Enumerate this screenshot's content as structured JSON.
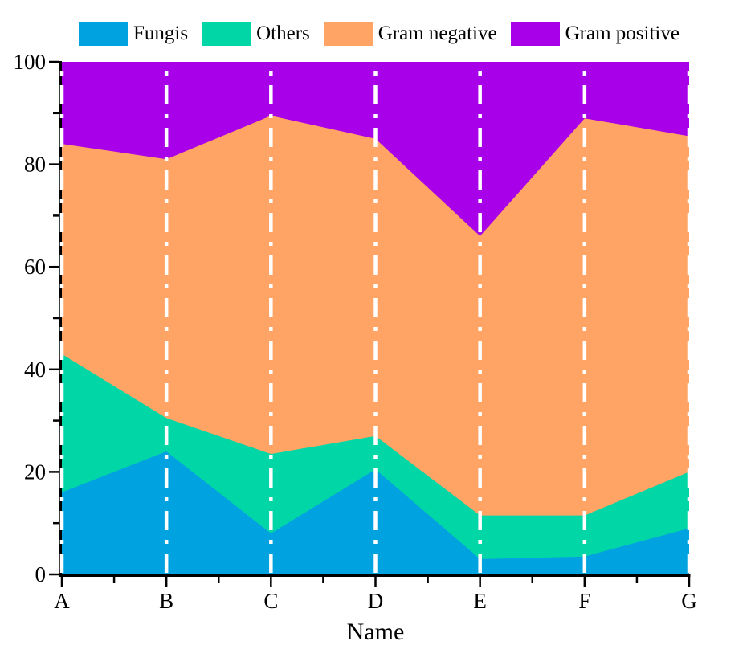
{
  "chart_data": {
    "type": "area",
    "stacked": true,
    "title": "",
    "xlabel": "Name",
    "ylabel": "",
    "categories": [
      "A",
      "B",
      "C",
      "D",
      "E",
      "F",
      "G"
    ],
    "ylim": [
      0,
      100
    ],
    "ytick_major_step": 20,
    "ytick_minor_step": 10,
    "y_tick_labels": [
      "0",
      "20",
      "40",
      "60",
      "80",
      "100"
    ],
    "grid": false,
    "legend_position": "top",
    "series": [
      {
        "name": "Fungis",
        "color": "#00A3E0",
        "values": [
          16,
          24,
          8,
          20.5,
          3,
          3.5,
          9
        ]
      },
      {
        "name": "Others",
        "color": "#00D6A6",
        "values": [
          27,
          6.5,
          15.5,
          6.5,
          8.5,
          8,
          11
        ]
      },
      {
        "name": "Gram negative",
        "color": "#FFA465",
        "values": [
          41,
          50.5,
          66,
          58,
          54.5,
          77.5,
          65.5
        ]
      },
      {
        "name": "Gram positive",
        "color": "#A800E8",
        "values": [
          16,
          19,
          10.5,
          15,
          34,
          11,
          14.5
        ]
      }
    ],
    "cumulative_tops": {
      "A": [
        16,
        43,
        84,
        100
      ],
      "B": [
        24,
        30.5,
        81,
        100
      ],
      "C": [
        8,
        23.5,
        89.5,
        100
      ],
      "D": [
        20.5,
        27,
        85,
        100
      ],
      "E": [
        3,
        11.5,
        66,
        100
      ],
      "F": [
        3.5,
        11.5,
        89,
        100
      ],
      "G": [
        9,
        20,
        85.5,
        100
      ]
    },
    "guide_lines": {
      "style": "dash-dot",
      "color": "#FFFFFF",
      "at_every_category": true
    },
    "axis_color": "#000000",
    "background": "#FFFFFF"
  }
}
